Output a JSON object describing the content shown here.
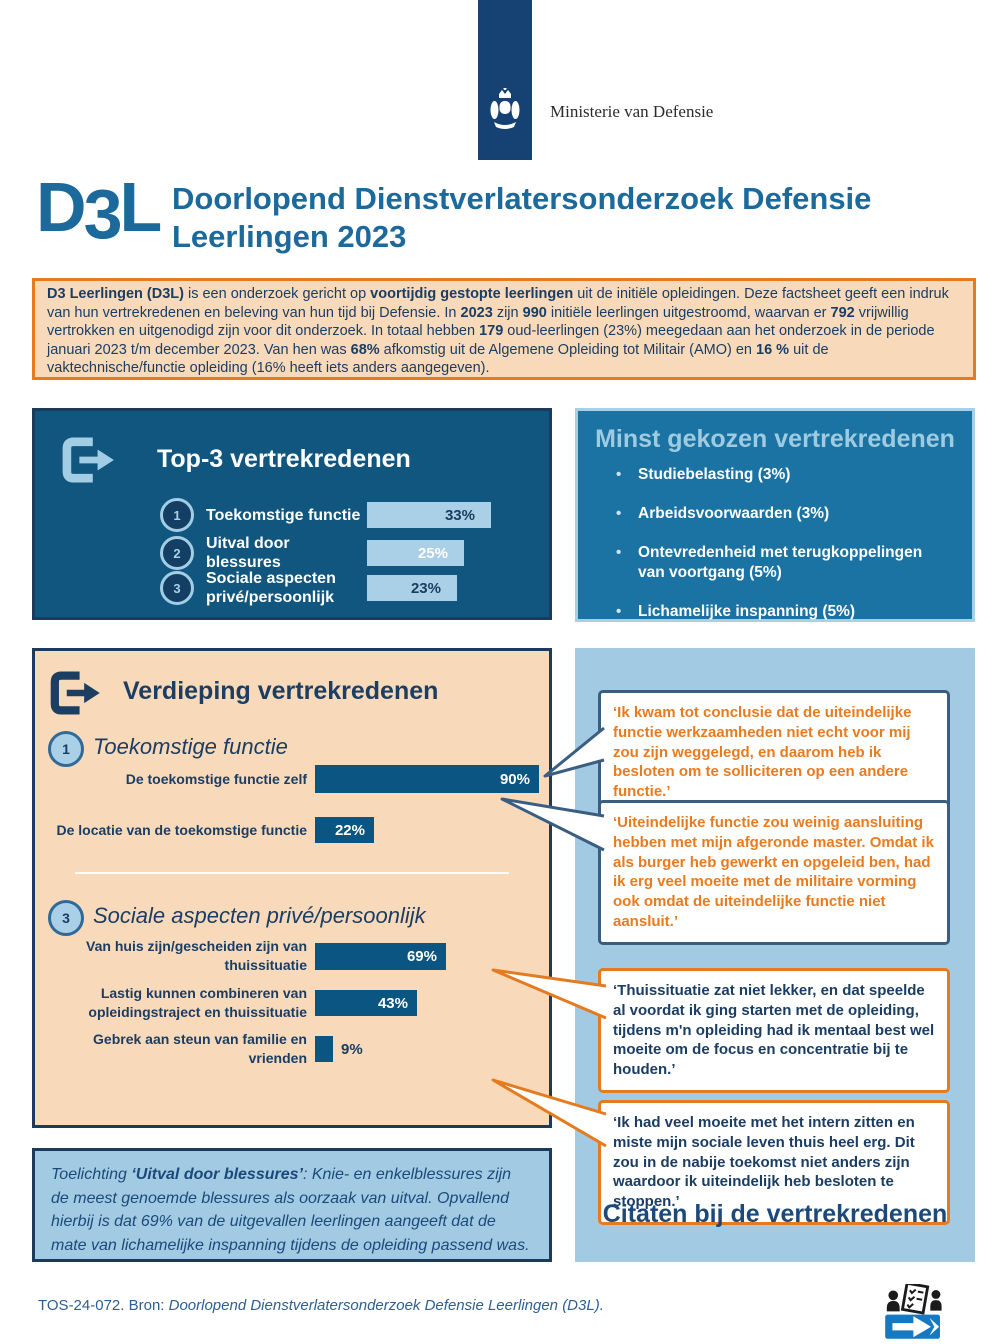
{
  "header": {
    "ministry": "Ministerie van Defensie",
    "logo_parts": [
      "D",
      "3",
      "L"
    ],
    "title_line1": "Doorlopend Dienstverlatersonderzoek Defensie",
    "title_line2": "Leerlingen 2023"
  },
  "intro": {
    "segments": [
      {
        "t": "D3 Leerlingen (D3L)",
        "b": true
      },
      {
        "t": " is een onderzoek gericht op "
      },
      {
        "t": "voortijdig gestopte leerlingen",
        "b": true
      },
      {
        "t": " uit de initiële opleidingen. Deze factsheet geeft een indruk van hun vertrekredenen en beleving van hun tijd bij Defensie. In "
      },
      {
        "t": "2023",
        "b": true
      },
      {
        "t": " zijn "
      },
      {
        "t": "990",
        "b": true
      },
      {
        "t": " initiële leerlingen uitgestroomd, waarvan er "
      },
      {
        "t": "792",
        "b": true
      },
      {
        "t": " vrijwillig vertrokken en uitgenodigd zijn voor dit onderzoek. In totaal hebben "
      },
      {
        "t": "179",
        "b": true
      },
      {
        "t": " oud-leerlingen (23%) meegedaan aan het onderzoek in de periode januari 2023 t/m december 2023. Van hen was "
      },
      {
        "t": "68%",
        "b": true
      },
      {
        "t": " afkomstig uit de Algemene Opleiding tot Militair (AMO) en "
      },
      {
        "t": "16 %",
        "b": true
      },
      {
        "t": " uit de vaktechnische/functie opleiding (16% heeft iets anders aangegeven)."
      }
    ]
  },
  "top3": {
    "title": "Top-3 vertrekredenen",
    "items": [
      {
        "rank": "1",
        "label": "Toekomstige functie",
        "value": 33,
        "pct": "33%"
      },
      {
        "rank": "2",
        "label": "Uitval door blessures",
        "value": 25,
        "pct": "25%"
      },
      {
        "rank": "3",
        "label": "Sociale aspecten privé/persoonlijk",
        "value": 23,
        "pct": "23%"
      }
    ]
  },
  "least": {
    "title": "Minst gekozen vertrekredenen",
    "items": [
      "Studiebelasting (3%)",
      "Arbeidsvoorwaarden (3%)",
      "Ontevredenheid met terugkoppelingen van voortgang (5%)",
      "Lichamelijke inspanning (5%)"
    ]
  },
  "depth": {
    "title": "Verdieping vertrekredenen",
    "section1": {
      "rank": "1",
      "heading": "Toekomstige functie",
      "bars": [
        {
          "label": "De toekomstige functie zelf",
          "value": 90,
          "pct": "90%"
        },
        {
          "label": "De locatie van de toekomstige functie",
          "value": 22,
          "pct": "22%"
        }
      ]
    },
    "section3": {
      "rank": "3",
      "heading": "Sociale aspecten privé/persoonlijk",
      "bars": [
        {
          "label": "Van huis zijn/gescheiden zijn van thuissituatie",
          "value": 69,
          "pct": "69%"
        },
        {
          "label": "Lastig kunnen combineren van opleidingstraject en thuissituatie",
          "value": 43,
          "pct": "43%"
        },
        {
          "label": "Gebrek aan steun van familie en vrienden",
          "value": 9,
          "pct": "9%"
        }
      ]
    }
  },
  "quotes": {
    "title": "Citaten bij de vertrekredenen",
    "items": [
      {
        "text": "‘Ik kwam tot conclusie dat de uiteindelijke functie werkzaamheden niet echt voor mij zou zijn weggelegd, en daarom heb ik besloten om te solliciteren op een andere functie.’"
      },
      {
        "text": "‘Uiteindelijke functie zou weinig aansluiting hebben met mijn afgeronde master. Omdat ik als burger heb gewerkt en opgeleid ben, had ik erg veel moeite met de militaire vorming ook omdat de uiteindelijke functie niet aansluit.’"
      },
      {
        "text": "‘Thuissituatie zat niet lekker, en dat speelde al voordat ik ging starten met de opleiding, tijdens m'n opleiding had ik mentaal best wel moeite om de focus en concentratie bij te houden.’"
      },
      {
        "text": "‘Ik had veel moeite met het intern zitten en miste mijn sociale leven thuis heel erg. Dit zou in de nabije toekomst niet anders zijn waardoor ik uiteindelijk heb besloten te stoppen.’"
      }
    ]
  },
  "note": {
    "segments": [
      {
        "t": "Toelichting ",
        "i": true
      },
      {
        "t": "‘Uitval door blessures’",
        "b": true,
        "i": true
      },
      {
        "t": ": Knie- en enkelblessures zijn de meest genoemde blessures als oorzaak van uitval. Opvallend hierbij is dat 69% van de uitgevallen leerlingen aangeeft dat de mate van lichamelijke inspanning tijdens de opleiding passend was.",
        "i": true
      }
    ]
  },
  "footer": {
    "segments": [
      {
        "t": "TOS-24-072. Bron: "
      },
      {
        "t": "Doorlopend Dienstverlatersonderzoek Defensie Leerlingen (D3L).",
        "i": true
      }
    ]
  },
  "chart_data": [
    {
      "type": "bar",
      "title": "Top-3 vertrekredenen",
      "categories": [
        "Toekomstige functie",
        "Uitval door blessures",
        "Sociale aspecten privé/persoonlijk"
      ],
      "values": [
        33,
        25,
        23
      ],
      "unit": "%",
      "orientation": "horizontal"
    },
    {
      "type": "bar",
      "title": "Verdieping vertrekredenen — Toekomstige functie",
      "categories": [
        "De toekomstige functie zelf",
        "De locatie van de toekomstige functie"
      ],
      "values": [
        90,
        22
      ],
      "unit": "%",
      "orientation": "horizontal"
    },
    {
      "type": "bar",
      "title": "Verdieping vertrekredenen — Sociale aspecten privé/persoonlijk",
      "categories": [
        "Van huis zijn/gescheiden zijn van thuissituatie",
        "Lastig kunnen combineren van opleidingstraject en thuissituatie",
        "Gebrek aan steun van familie en vrienden"
      ],
      "values": [
        69,
        43,
        9
      ],
      "unit": "%",
      "orientation": "horizontal"
    },
    {
      "type": "bar",
      "title": "Minst gekozen vertrekredenen",
      "categories": [
        "Studiebelasting",
        "Arbeidsvoorwaarden",
        "Ontevredenheid met terugkoppelingen van voortgang",
        "Lichamelijke inspanning"
      ],
      "values": [
        3,
        3,
        5,
        5
      ],
      "unit": "%",
      "orientation": "list"
    }
  ],
  "colors": {
    "rijks_blue": "#154273",
    "title_blue": "#1b6a9b",
    "dark_box_blue": "#11567e",
    "mid_blue": "#1a73a3",
    "light_blue": "#a2cae3",
    "bar_light": "#a9d0e6",
    "bar_dark": "#0b5583",
    "peach": "#f8dabb",
    "orange": "#e47b20",
    "navy_text": "#1b3d63"
  }
}
